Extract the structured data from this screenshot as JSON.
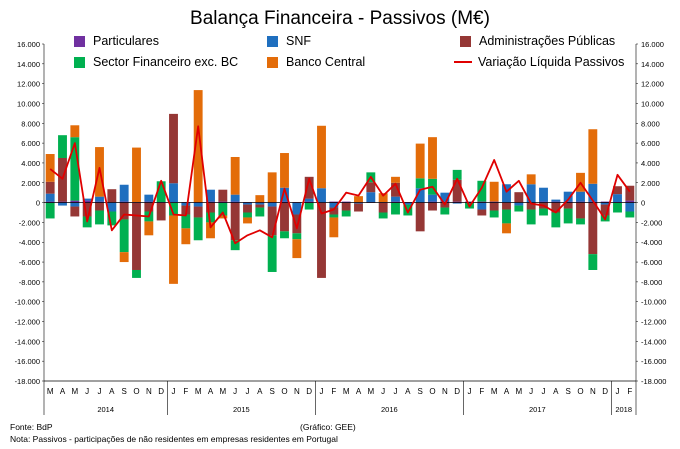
{
  "chart_data": {
    "type": "bar",
    "title": "Balança Financeira - Passivos (M€)",
    "ylim": [
      -18000,
      16000
    ],
    "y_ticks": [
      "16.000",
      "14.000",
      "12.000",
      "10.000",
      "8.000",
      "6.000",
      "4.000",
      "2.000",
      "0",
      "-2.000",
      "-4.000",
      "-6.000",
      "-8.000",
      "-10.000",
      "-12.000",
      "-14.000",
      "-16.000",
      "-18.000"
    ],
    "y_tick_values": [
      16000,
      14000,
      12000,
      10000,
      8000,
      6000,
      4000,
      2000,
      0,
      -2000,
      -4000,
      -6000,
      -8000,
      -10000,
      -12000,
      -14000,
      -16000,
      -18000
    ],
    "grid": false,
    "stacked": true,
    "months": [
      "M",
      "A",
      "M",
      "J",
      "J",
      "A",
      "S",
      "O",
      "N",
      "D",
      "J",
      "F",
      "M",
      "A",
      "M",
      "J",
      "J",
      "A",
      "S",
      "O",
      "N",
      "D",
      "J",
      "F",
      "M",
      "A",
      "M",
      "J",
      "J",
      "A",
      "S",
      "O",
      "N",
      "D",
      "J",
      "F",
      "M",
      "A",
      "M",
      "J",
      "J",
      "A",
      "S",
      "O",
      "N",
      "D",
      "J",
      "F"
    ],
    "years": [
      {
        "label": "2014",
        "start": 0,
        "end": 9
      },
      {
        "label": "2015",
        "start": 10,
        "end": 21
      },
      {
        "label": "2016",
        "start": 22,
        "end": 33
      },
      {
        "label": "2017",
        "start": 34,
        "end": 45
      },
      {
        "label": "2018",
        "start": 46,
        "end": 47
      }
    ],
    "series": [
      {
        "name": "Particulares",
        "color": "#7030a0",
        "values": [
          100,
          100,
          200,
          200,
          100,
          50,
          100,
          50,
          100,
          50,
          50,
          50,
          50,
          100,
          100,
          100,
          50,
          50,
          50,
          100,
          50,
          100,
          50,
          100,
          100,
          50,
          50,
          50,
          100,
          50,
          50,
          100,
          100,
          100,
          100,
          100,
          100,
          50,
          50,
          50,
          100,
          100,
          100,
          100,
          100,
          100,
          50,
          200
        ]
      },
      {
        "name": "SNF",
        "color": "#1f6fbf",
        "values": [
          800,
          -300,
          -400,
          200,
          500,
          -900,
          1700,
          0,
          700,
          0,
          1900,
          -300,
          -400,
          1200,
          0,
          700,
          -200,
          -200,
          -400,
          1400,
          -1200,
          300,
          1400,
          -500,
          0,
          -100,
          1000,
          0,
          500,
          -200,
          1400,
          700,
          900,
          -100,
          0,
          -700,
          0,
          1800,
          -300,
          1800,
          1400,
          200,
          1000,
          1000,
          1800,
          -200,
          800,
          -900
        ]
      },
      {
        "name": "Administrações Públicas",
        "color": "#953735",
        "values": [
          1200,
          4400,
          -1000,
          -1400,
          -800,
          1300,
          -1700,
          -6800,
          -900,
          -1800,
          7000,
          -900,
          -1100,
          -1000,
          1200,
          -3800,
          -800,
          -300,
          -2900,
          -2900,
          -1900,
          2200,
          -7600,
          -700,
          -800,
          -800,
          1000,
          -1000,
          1400,
          0,
          -2900,
          -800,
          -500,
          2200,
          0,
          -600,
          -800,
          -700,
          1000,
          -700,
          -600,
          -1000,
          -600,
          -1600,
          -5200,
          -1100,
          800,
          1500
        ]
      },
      {
        "name": "Sector Financeiro exc. BC",
        "color": "#00b050",
        "values": [
          -1600,
          2300,
          6400,
          -1100,
          -1400,
          -1400,
          -3300,
          -800,
          -1000,
          2100,
          -1300,
          -1400,
          -2300,
          -1000,
          -1300,
          -1000,
          -500,
          -900,
          -3700,
          -700,
          -600,
          -700,
          0,
          -300,
          -600,
          0,
          1000,
          -600,
          -1200,
          -1100,
          1000,
          1600,
          -700,
          1000,
          -600,
          2100,
          -700,
          -1400,
          -600,
          -1500,
          -700,
          -1500,
          -1500,
          -600,
          -1600,
          -600,
          -1000,
          -600
        ]
      },
      {
        "name": "Banco Central",
        "color": "#e36c09",
        "values": [
          2800,
          0,
          1200,
          0,
          5000,
          0,
          -1000,
          5500,
          -1400,
          0,
          -6900,
          -1600,
          11300,
          -1600,
          -300,
          3800,
          -600,
          700,
          3000,
          3500,
          -1900,
          0,
          6300,
          -2000,
          0,
          600,
          0,
          900,
          600,
          0,
          3500,
          4200,
          0,
          0,
          0,
          0,
          2000,
          -1000,
          0,
          1000,
          0,
          0,
          0,
          1900,
          5500,
          0,
          0,
          0
        ]
      }
    ],
    "line": {
      "name": "Variação Líquida Passivos",
      "color": "#e00000",
      "values": [
        3400,
        2400,
        6000,
        -1900,
        3500,
        -2800,
        -1200,
        -1300,
        -1400,
        2200,
        -1200,
        -1300,
        7700,
        -2500,
        -1000,
        -4100,
        -3300,
        -2800,
        -3500,
        1400,
        -2600,
        2400,
        -1100,
        -700,
        1000,
        700,
        2600,
        700,
        1900,
        -1000,
        1300,
        1600,
        -200,
        2400,
        -400,
        1500,
        4300,
        1100,
        2200,
        -100,
        -300,
        -1000,
        300,
        2000,
        200,
        -1700,
        2800,
        1100
      ]
    },
    "footnotes": {
      "source": "Fonte: BdP",
      "credit": "(Gráfico: GEE)",
      "note": "Nota: Passivos - participações de não residentes em empresas residentes em Portugal"
    }
  }
}
